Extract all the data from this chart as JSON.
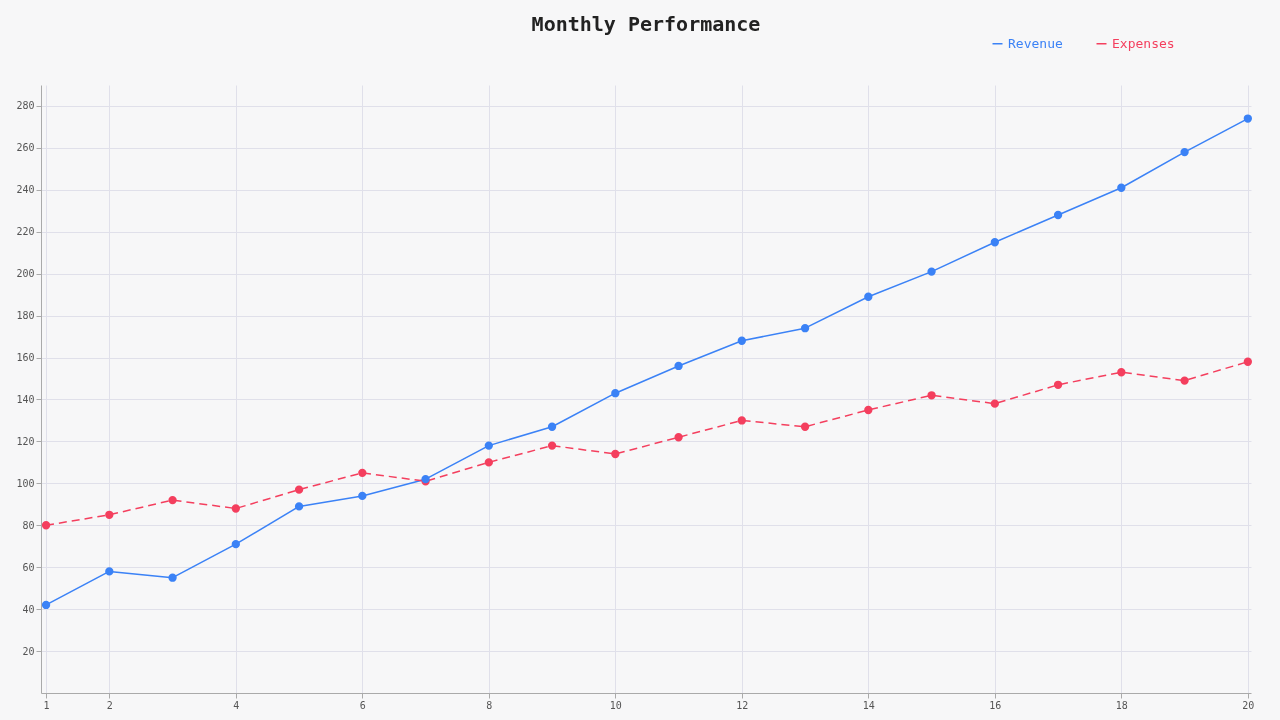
{
  "chart_data": {
    "type": "line",
    "title": "Monthly Performance",
    "x": [
      1,
      2,
      3,
      4,
      5,
      6,
      7,
      8,
      9,
      10,
      11,
      12,
      13,
      14,
      15,
      16,
      17,
      18,
      19,
      20
    ],
    "series": [
      {
        "name": "Revenue",
        "color": "#3b82f6",
        "line_style": "solid",
        "values": [
          42,
          58,
          55,
          71,
          89,
          94,
          102,
          118,
          127,
          143,
          156,
          168,
          174,
          189,
          201,
          215,
          228,
          241,
          258,
          274
        ]
      },
      {
        "name": "Expenses",
        "color": "#f43f5e",
        "line_style": "dashed",
        "values": [
          80,
          85,
          92,
          88,
          97,
          105,
          101,
          110,
          118,
          114,
          122,
          130,
          127,
          135,
          142,
          138,
          147,
          153,
          149,
          158
        ]
      }
    ],
    "xlim": [
      0.92,
      20.05
    ],
    "xticks": [
      1,
      2,
      4,
      6,
      8,
      10,
      12,
      14,
      16,
      18,
      20
    ],
    "ylim": [
      0,
      290
    ],
    "yticks": [
      20,
      40,
      60,
      80,
      100,
      120,
      140,
      160,
      180,
      200,
      220,
      240,
      260,
      280
    ],
    "grid": true,
    "legend": "top right",
    "marker": "circle"
  }
}
